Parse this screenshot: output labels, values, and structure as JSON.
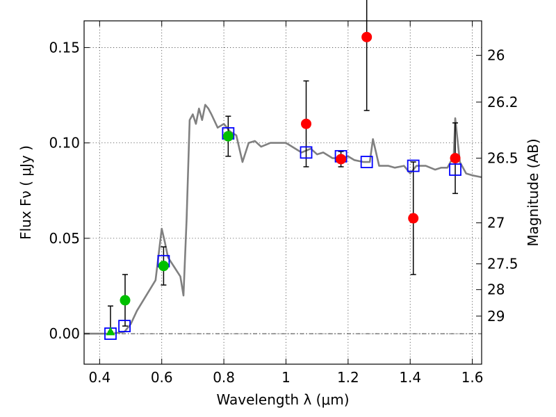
{
  "chart_data": {
    "type": "scatter",
    "title": "",
    "xlabel": "Wavelength  λ (μm)",
    "ylabel": "Flux  Fν  ( μJy )",
    "ylabel_right": "Magnitude (AB)",
    "xlim": [
      0.35,
      1.63
    ],
    "ylim": [
      -0.016,
      0.164
    ],
    "grid": true,
    "x_ticks": [
      0.4,
      0.6,
      0.8,
      1.0,
      1.2,
      1.4,
      1.6
    ],
    "x_tick_labels": [
      "0.4",
      "0.6",
      "0.8",
      "1",
      "1.2",
      "1.4",
      "1.6"
    ],
    "y_ticks": [
      0.0,
      0.05,
      0.1,
      0.15
    ],
    "y_tick_labels": [
      "0.00",
      "0.05",
      "0.10",
      "0.15"
    ],
    "right_ticks": [
      {
        "label": "26",
        "flux": 0.1459
      },
      {
        "label": "26.2",
        "flux": 0.1214
      },
      {
        "label": "26.5",
        "flux": 0.092
      },
      {
        "label": "27",
        "flux": 0.0581
      },
      {
        "label": "27.5",
        "flux": 0.0366
      },
      {
        "label": "28",
        "flux": 0.0231
      },
      {
        "label": "29",
        "flux": 0.0092
      }
    ],
    "model_spectrum": {
      "color": "#808080",
      "x": [
        0.35,
        0.4,
        0.44,
        0.48,
        0.5,
        0.52,
        0.55,
        0.58,
        0.6,
        0.61,
        0.62,
        0.64,
        0.66,
        0.67,
        0.68,
        0.69,
        0.7,
        0.71,
        0.72,
        0.73,
        0.74,
        0.75,
        0.76,
        0.78,
        0.8,
        0.82,
        0.84,
        0.86,
        0.88,
        0.9,
        0.92,
        0.95,
        1.0,
        1.05,
        1.08,
        1.1,
        1.12,
        1.15,
        1.18,
        1.2,
        1.22,
        1.25,
        1.27,
        1.28,
        1.3,
        1.33,
        1.35,
        1.38,
        1.4,
        1.42,
        1.45,
        1.48,
        1.5,
        1.52,
        1.54,
        1.545,
        1.55,
        1.56,
        1.58,
        1.6,
        1.63
      ],
      "y": [
        0.0,
        0.0,
        0.0,
        0.001,
        0.005,
        0.012,
        0.02,
        0.028,
        0.055,
        0.048,
        0.04,
        0.035,
        0.03,
        0.02,
        0.06,
        0.112,
        0.115,
        0.11,
        0.118,
        0.112,
        0.12,
        0.118,
        0.115,
        0.108,
        0.11,
        0.106,
        0.104,
        0.09,
        0.1,
        0.101,
        0.098,
        0.1,
        0.1,
        0.095,
        0.097,
        0.094,
        0.095,
        0.092,
        0.092,
        0.093,
        0.091,
        0.09,
        0.09,
        0.102,
        0.088,
        0.088,
        0.087,
        0.088,
        0.084,
        0.088,
        0.088,
        0.086,
        0.087,
        0.087,
        0.093,
        0.113,
        0.105,
        0.09,
        0.084,
        0.083,
        0.082
      ]
    },
    "series": [
      {
        "name": "",
        "marker": "open-square",
        "color": "#0000ff",
        "points": [
          {
            "x": 0.435,
            "y": 0.0
          },
          {
            "x": 0.48,
            "y": 0.004
          },
          {
            "x": 0.606,
            "y": 0.038
          },
          {
            "x": 0.814,
            "y": 0.105
          },
          {
            "x": 1.065,
            "y": 0.095
          },
          {
            "x": 1.177,
            "y": 0.093
          },
          {
            "x": 1.26,
            "y": 0.09
          },
          {
            "x": 1.41,
            "y": 0.088
          },
          {
            "x": 1.545,
            "y": 0.086
          }
        ]
      },
      {
        "name": "",
        "marker": "filled-circle",
        "color": "#00c000",
        "points": [
          {
            "x": 0.482,
            "y": 0.0175,
            "err": 0.0135
          },
          {
            "x": 0.606,
            "y": 0.0355,
            "err": 0.01
          },
          {
            "x": 0.814,
            "y": 0.1035,
            "err": 0.0105
          }
        ]
      },
      {
        "name": "",
        "marker": "filled-circle",
        "color": "#ff0000",
        "points": [
          {
            "x": 1.065,
            "y": 0.11,
            "err": 0.0225
          },
          {
            "x": 1.177,
            "y": 0.0915,
            "err": 0.004
          },
          {
            "x": 1.26,
            "y": 0.1555,
            "err": 0.0385
          },
          {
            "x": 1.41,
            "y": 0.0605,
            "err": 0.0295
          },
          {
            "x": 1.545,
            "y": 0.092,
            "err": 0.0185
          }
        ]
      },
      {
        "name": "",
        "marker": "filled-triangle",
        "color": "#00c000",
        "points": [
          {
            "x": 0.435,
            "y": 0.001,
            "err_low": 0.0,
            "err_high": 0.0135
          }
        ]
      }
    ]
  }
}
